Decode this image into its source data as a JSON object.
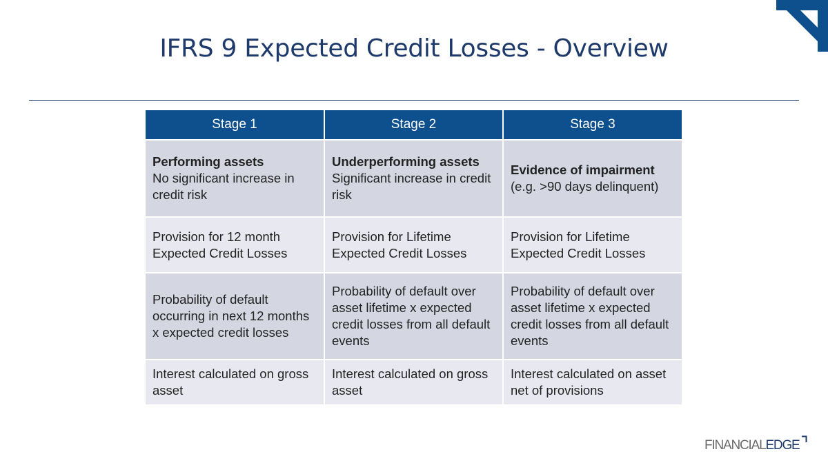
{
  "title": "IFRS 9 Expected Credit Losses - Overview",
  "colors": {
    "header": "#0e4f8e",
    "title": "#1e3a6b",
    "row_dark": "#d4d7e2",
    "row_light": "#e8e9f0"
  },
  "table": {
    "headers": [
      "Stage 1",
      "Stage 2",
      "Stage 3"
    ],
    "rows": [
      {
        "cells": [
          {
            "heading": "Performing assets",
            "text": "No significant increase in credit risk"
          },
          {
            "heading": "Underperforming assets",
            "text": "Significant increase in credit risk"
          },
          {
            "heading": "Evidence of impairment",
            "text": "(e.g. >90 days delinquent)"
          }
        ]
      },
      {
        "cells": [
          {
            "text": "Provision for 12 month Expected Credit Losses"
          },
          {
            "text": "Provision for Lifetime Expected Credit Losses"
          },
          {
            "text": "Provision for Lifetime Expected Credit Losses"
          }
        ]
      },
      {
        "cells": [
          {
            "text": "Probability of default occurring in next 12 months x expected credit losses"
          },
          {
            "text": "Probability of default over asset lifetime x expected credit losses from all default events"
          },
          {
            "text": "Probability of default over asset lifetime x expected credit losses from all default events"
          }
        ]
      },
      {
        "cells": [
          {
            "text": "Interest calculated on gross asset"
          },
          {
            "text": "Interest calculated on gross asset"
          },
          {
            "text": "Interest calculated on asset net of provisions"
          }
        ]
      }
    ]
  },
  "logo": {
    "part1": "FINANCIAL",
    "part2": "EDGE",
    "icon": "corner-bracket-icon"
  }
}
